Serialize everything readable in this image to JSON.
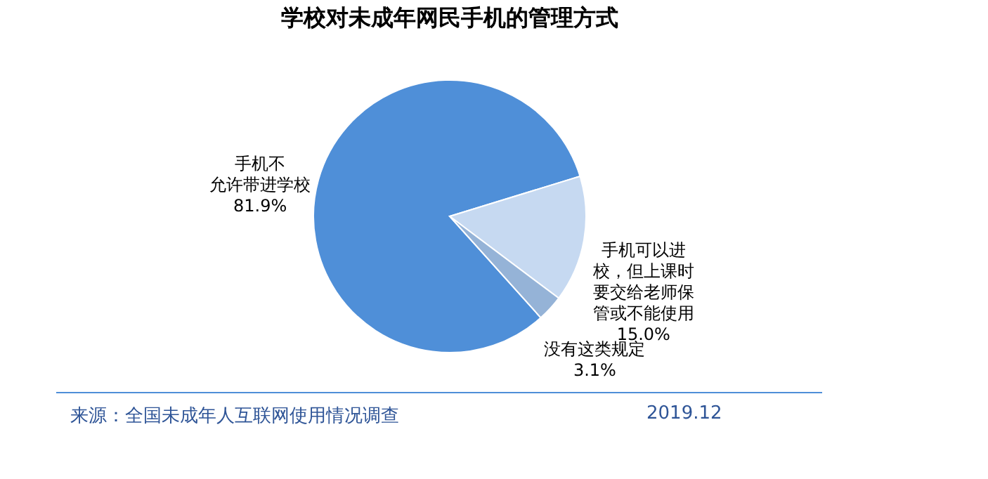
{
  "chart_data": {
    "type": "pie",
    "title": "学校对未成年网民手机的管理方式",
    "categories": [
      "手机不允许带进学校",
      "手机可以进校，但上课时要交给老师保管或不能使用",
      "没有这类规定"
    ],
    "values": [
      81.9,
      15.0,
      3.1
    ],
    "value_labels": [
      "81.9%",
      "15.0%",
      "3.1%"
    ],
    "colors": [
      "#4f8fd8",
      "#c6d9f1",
      "#95b3d7"
    ],
    "annotations": [
      "来源：全国未成年人互联网使用情况调查",
      "2019.12"
    ]
  }
}
